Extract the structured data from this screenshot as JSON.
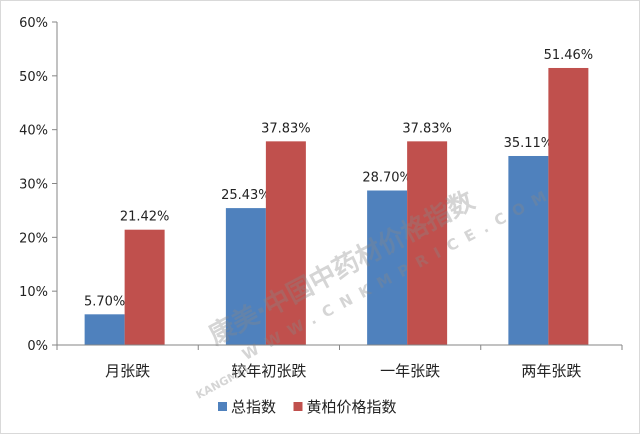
{
  "chart_data": {
    "type": "bar",
    "title": "",
    "xlabel": "",
    "ylabel": "",
    "categories": [
      "月张跌",
      "较年初张跌",
      "一年张跌",
      "两年张跌"
    ],
    "series": [
      {
        "name": "总指数",
        "color": "#4f81bd",
        "values": [
          5.7,
          25.43,
          28.7,
          35.11
        ],
        "labels": [
          "5.70%",
          "25.43%",
          "28.70%",
          "35.11%"
        ]
      },
      {
        "name": "黄柏价格指数",
        "color": "#c0504d",
        "values": [
          21.42,
          37.83,
          37.83,
          51.46
        ],
        "labels": [
          "21.42%",
          "37.83%",
          "37.83%",
          "51.46%"
        ]
      }
    ],
    "ylim": [
      0,
      60
    ],
    "yticks": [
      "0%",
      "10%",
      "20%",
      "30%",
      "40%",
      "50%",
      "60%"
    ],
    "grid": false,
    "legend": "bottom"
  },
  "watermark": {
    "text_cn": "康美·中国中药材价格指数",
    "text_url": "WWW.CNKMPRICE.COM",
    "brand": "KANGMEI"
  }
}
